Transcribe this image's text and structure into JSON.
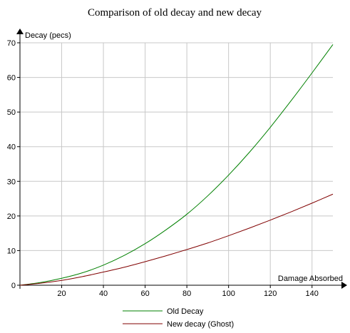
{
  "chart_data": {
    "type": "line",
    "title": "Comparison of old decay and new decay",
    "xlabel": "Damage Absorbed",
    "ylabel": "Decay (pecs)",
    "xlim": [
      0,
      150
    ],
    "ylim": [
      0,
      70
    ],
    "xticks": [
      0,
      20,
      40,
      60,
      80,
      100,
      120,
      140
    ],
    "yticks": [
      0,
      10,
      20,
      30,
      40,
      50,
      60,
      70
    ],
    "grid": true,
    "legend": "bottom",
    "x": [
      0,
      10,
      20,
      30,
      40,
      50,
      60,
      70,
      80,
      90,
      100,
      110,
      120,
      130,
      140,
      150
    ],
    "series": [
      {
        "name": "Old Decay",
        "color": "#008000",
        "values": [
          0,
          0.8,
          2.0,
          3.6,
          5.8,
          8.6,
          12.0,
          16.0,
          20.5,
          25.8,
          31.8,
          38.4,
          45.6,
          53.3,
          61.3,
          69.5
        ]
      },
      {
        "name": "New decay (Ghost)",
        "color": "#800000",
        "values": [
          0,
          0.6,
          1.4,
          2.5,
          3.8,
          5.2,
          6.8,
          8.5,
          10.3,
          12.2,
          14.3,
          16.5,
          18.8,
          21.2,
          23.7,
          26.3
        ]
      }
    ]
  }
}
